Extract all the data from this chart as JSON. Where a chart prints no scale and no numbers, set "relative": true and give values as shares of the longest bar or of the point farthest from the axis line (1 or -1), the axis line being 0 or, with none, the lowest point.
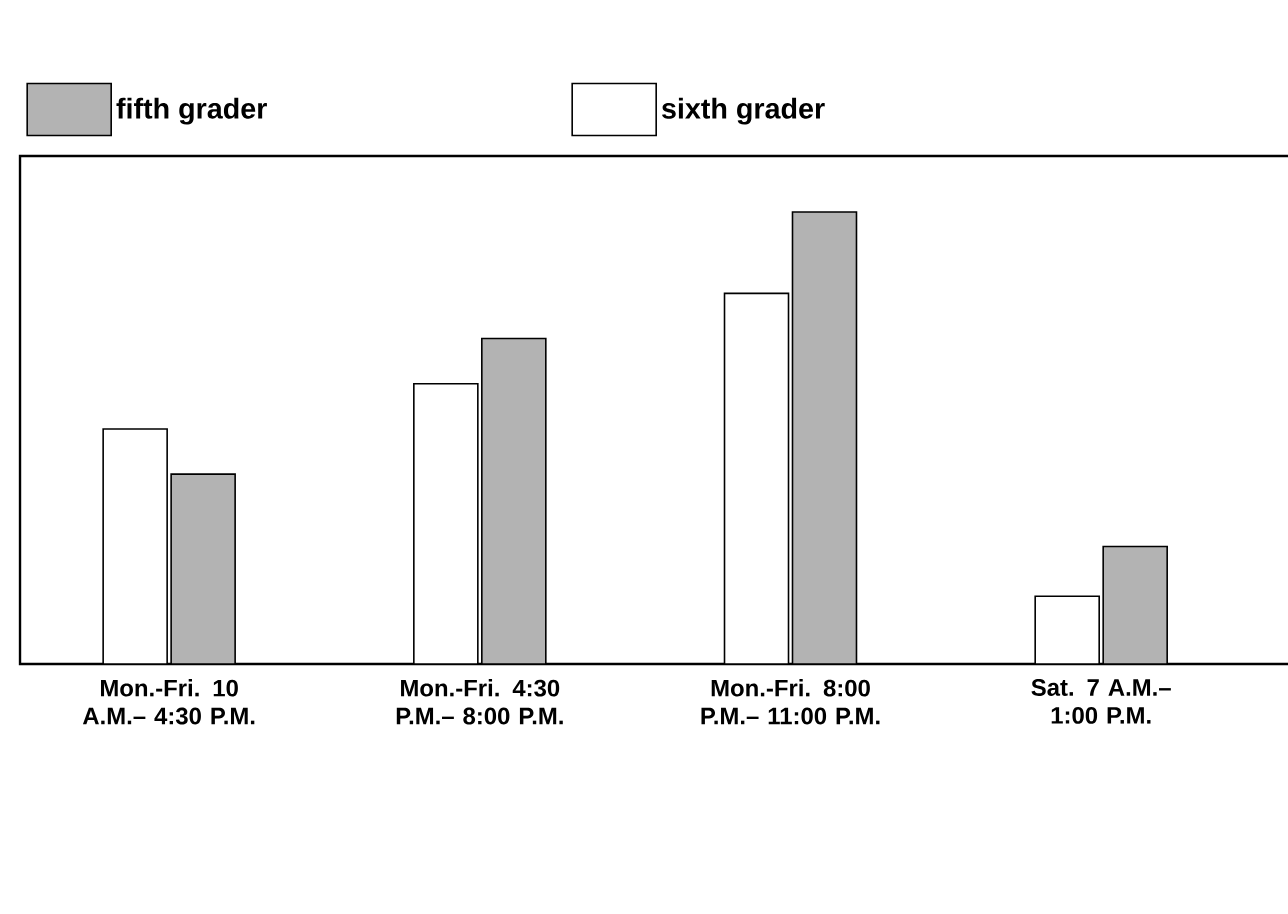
{
  "chart_data": {
    "type": "bar",
    "relative": true,
    "legend": "top",
    "categories": [
      "Mon.-Fri. 10 A.M.– 4:30 P.M.",
      "Mon.-Fri. 4:30 P.M.– 8:00 P.M.",
      "Mon.-Fri. 8:00 P.M.– 11:00 P.M.",
      "Sat. 7 A.M.– 1:00 P.M."
    ],
    "series": [
      {
        "name": "sixth grader",
        "color": "#ffffff",
        "values": [
          0.52,
          0.62,
          0.82,
          0.15
        ]
      },
      {
        "name": "fifth grader",
        "color": "#b3b3b3",
        "values": [
          0.42,
          0.72,
          1.0,
          0.26
        ]
      }
    ]
  }
}
